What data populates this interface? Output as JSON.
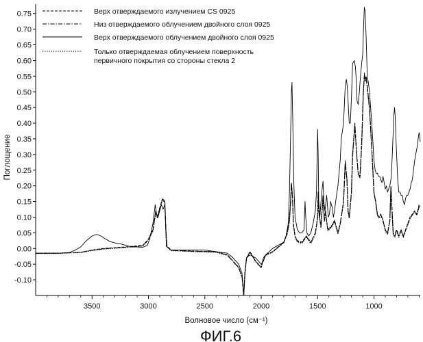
{
  "chart_data": {
    "type": "line",
    "caption": "ФИГ.6",
    "xlabel": "Волновое число (см⁻¹)",
    "ylabel": "Поглощение",
    "xlim": [
      4000,
      590
    ],
    "ylim": [
      -0.15,
      0.78
    ],
    "x_ticks": [
      {
        "value": 3500,
        "label": "3500"
      },
      {
        "value": 3000,
        "label": "3000"
      },
      {
        "value": 2500,
        "label": "2500"
      },
      {
        "value": 2000,
        "label": "2000"
      },
      {
        "value": 1500,
        "label": "1500"
      },
      {
        "value": 1000,
        "label": "1000"
      }
    ],
    "y_ticks": [
      {
        "value": 0.75,
        "label": "0.75"
      },
      {
        "value": 0.7,
        "label": "0.70"
      },
      {
        "value": 0.65,
        "label": "0.65"
      },
      {
        "value": 0.6,
        "label": "0.60"
      },
      {
        "value": 0.55,
        "label": "0.55"
      },
      {
        "value": 0.5,
        "label": "0.50"
      },
      {
        "value": 0.45,
        "label": "0.45"
      },
      {
        "value": 0.4,
        "label": "0.40"
      },
      {
        "value": 0.35,
        "label": "0.35"
      },
      {
        "value": 0.3,
        "label": "0.30"
      },
      {
        "value": 0.25,
        "label": "0.25"
      },
      {
        "value": 0.2,
        "label": "0.20"
      },
      {
        "value": 0.15,
        "label": "0.15"
      },
      {
        "value": 0.1,
        "label": "0.10"
      },
      {
        "value": 0.05,
        "label": "0.05"
      },
      {
        "value": 0.0,
        "label": "0.00"
      },
      {
        "value": -0.05,
        "label": "-0.05"
      },
      {
        "value": -0.1,
        "label": "-0.10"
      }
    ],
    "legend": {
      "placement": "top-left",
      "entries": [
        {
          "series": "s1",
          "lines": [
            "Верх отверждаемого излучением CS 0925"
          ]
        },
        {
          "series": "s2",
          "lines": [
            "Низ отверждаемого облучением двойного слоя 0925"
          ]
        },
        {
          "series": "s3",
          "lines": [
            "Верх отверждаемого облучением двойного слоя 0925"
          ]
        },
        {
          "series": "s4",
          "lines": [
            "Только отверждаемая облучением поверхность",
            "первичного покрытия со стороны стекла 2"
          ]
        }
      ]
    },
    "series": [
      {
        "id": "s1",
        "name": "Верх отверждаемого излучением CS 0925",
        "style": "dashed",
        "x": [
          4000,
          3800,
          3600,
          3500,
          3400,
          3200,
          3050,
          3000,
          2960,
          2935,
          2920,
          2900,
          2875,
          2855,
          2840,
          2800,
          2600,
          2400,
          2300,
          2250,
          2200,
          2170,
          2155,
          2145,
          2130,
          2100,
          2050,
          2000,
          1980,
          1960,
          1900,
          1850,
          1800,
          1770,
          1750,
          1740,
          1732,
          1722,
          1715,
          1700,
          1680,
          1640,
          1600,
          1560,
          1520,
          1500,
          1495,
          1490,
          1470,
          1452,
          1440,
          1430,
          1410,
          1380,
          1350,
          1320,
          1300,
          1270,
          1255,
          1240,
          1230,
          1220,
          1200,
          1190,
          1170,
          1155,
          1140,
          1125,
          1110,
          1095,
          1085,
          1080,
          1070,
          1060,
          1040,
          1020,
          1000,
          985,
          970,
          955,
          940,
          920,
          900,
          880,
          860,
          850,
          840,
          830,
          820,
          815,
          810,
          800,
          790,
          780,
          760,
          740,
          720,
          700,
          680,
          660,
          640,
          620,
          600,
          590
        ],
        "y": [
          -0.015,
          -0.015,
          -0.012,
          -0.005,
          0.0,
          0.005,
          0.01,
          0.03,
          0.06,
          0.12,
          0.1,
          0.13,
          0.16,
          0.15,
          0.01,
          -0.005,
          -0.008,
          -0.01,
          -0.02,
          -0.04,
          -0.06,
          -0.09,
          -0.15,
          -0.08,
          -0.03,
          -0.01,
          -0.04,
          -0.06,
          -0.03,
          -0.02,
          -0.01,
          0.005,
          0.02,
          0.05,
          0.09,
          0.15,
          0.21,
          0.16,
          0.08,
          0.04,
          0.025,
          0.02,
          0.04,
          0.02,
          0.05,
          0.1,
          0.18,
          0.12,
          0.07,
          0.17,
          0.09,
          0.12,
          0.06,
          0.07,
          0.09,
          0.05,
          0.08,
          0.15,
          0.28,
          0.22,
          0.12,
          0.1,
          0.18,
          0.3,
          0.4,
          0.31,
          0.24,
          0.23,
          0.33,
          0.5,
          0.56,
          0.54,
          0.55,
          0.52,
          0.45,
          0.32,
          0.18,
          0.15,
          0.11,
          0.1,
          0.11,
          0.09,
          0.06,
          0.05,
          0.09,
          0.2,
          0.12,
          0.05,
          0.04,
          0.04,
          0.05,
          0.06,
          0.05,
          0.04,
          0.06,
          0.04,
          0.06,
          0.08,
          0.1,
          0.11,
          0.12,
          0.11,
          0.14,
          0.14
        ]
      },
      {
        "id": "s2",
        "name": "Низ отверждаемого облучением двойного слоя 0925",
        "style": "dash-dot",
        "x": [
          4000,
          3800,
          3600,
          3500,
          3400,
          3200,
          3050,
          3000,
          2960,
          2935,
          2920,
          2900,
          2875,
          2855,
          2840,
          2800,
          2600,
          2400,
          2300,
          2250,
          2200,
          2170,
          2155,
          2145,
          2130,
          2100,
          2050,
          2000,
          1980,
          1960,
          1900,
          1850,
          1800,
          1770,
          1750,
          1740,
          1732,
          1722,
          1715,
          1700,
          1680,
          1640,
          1600,
          1560,
          1520,
          1500,
          1495,
          1490,
          1470,
          1452,
          1440,
          1430,
          1410,
          1380,
          1350,
          1320,
          1300,
          1270,
          1255,
          1240,
          1230,
          1220,
          1200,
          1190,
          1170,
          1155,
          1140,
          1125,
          1110,
          1095,
          1085,
          1080,
          1070,
          1060,
          1040,
          1020,
          1000,
          985,
          970,
          955,
          940,
          920,
          900,
          880,
          860,
          850,
          840,
          830,
          820,
          815,
          810,
          800,
          790,
          780,
          760,
          740,
          720,
          700,
          680,
          660,
          640,
          620,
          600,
          590
        ],
        "y": [
          -0.015,
          -0.015,
          -0.012,
          -0.006,
          -0.001,
          0.004,
          0.009,
          0.028,
          0.058,
          0.118,
          0.098,
          0.128,
          0.158,
          0.148,
          0.008,
          -0.006,
          -0.009,
          -0.011,
          -0.021,
          -0.041,
          -0.061,
          -0.091,
          -0.15,
          -0.08,
          -0.031,
          -0.011,
          -0.041,
          -0.061,
          -0.031,
          -0.021,
          -0.011,
          0.004,
          0.019,
          0.048,
          0.088,
          0.148,
          0.208,
          0.158,
          0.078,
          0.038,
          0.023,
          0.018,
          0.038,
          0.018,
          0.048,
          0.098,
          0.178,
          0.118,
          0.068,
          0.168,
          0.088,
          0.118,
          0.058,
          0.068,
          0.088,
          0.048,
          0.078,
          0.148,
          0.275,
          0.218,
          0.118,
          0.098,
          0.178,
          0.298,
          0.395,
          0.308,
          0.238,
          0.228,
          0.328,
          0.495,
          0.555,
          0.535,
          0.545,
          0.515,
          0.445,
          0.318,
          0.178,
          0.148,
          0.108,
          0.098,
          0.108,
          0.088,
          0.058,
          0.048,
          0.088,
          0.195,
          0.118,
          0.048,
          0.038,
          0.038,
          0.048,
          0.058,
          0.048,
          0.038,
          0.058,
          0.038,
          0.058,
          0.078,
          0.098,
          0.108,
          0.118,
          0.108,
          0.135,
          0.138
        ]
      },
      {
        "id": "s3",
        "name": "Верх отверждаемого облучением двойного слоя 0925",
        "style": "solid",
        "x": [
          4000,
          3800,
          3700,
          3650,
          3600,
          3550,
          3500,
          3460,
          3420,
          3380,
          3340,
          3300,
          3250,
          3200,
          3150,
          3100,
          3050,
          3010,
          2990,
          2960,
          2940,
          2928,
          2915,
          2900,
          2885,
          2870,
          2855,
          2845,
          2835,
          2800,
          2700,
          2600,
          2500,
          2400,
          2300,
          2250,
          2200,
          2170,
          2155,
          2145,
          2130,
          2100,
          2050,
          2000,
          1980,
          1960,
          1900,
          1850,
          1800,
          1780,
          1760,
          1750,
          1740,
          1733,
          1727,
          1720,
          1710,
          1700,
          1680,
          1660,
          1640,
          1620,
          1612,
          1605,
          1595,
          1580,
          1560,
          1540,
          1520,
          1510,
          1500,
          1495,
          1490,
          1480,
          1470,
          1460,
          1452,
          1445,
          1435,
          1420,
          1405,
          1395,
          1385,
          1370,
          1360,
          1350,
          1340,
          1320,
          1300,
          1290,
          1270,
          1255,
          1245,
          1238,
          1230,
          1220,
          1210,
          1200,
          1190,
          1175,
          1165,
          1158,
          1150,
          1140,
          1130,
          1120,
          1110,
          1100,
          1093,
          1086,
          1080,
          1070,
          1060,
          1050,
          1040,
          1030,
          1020,
          1010,
          1000,
          990,
          980,
          970,
          960,
          950,
          940,
          930,
          920,
          910,
          900,
          890,
          880,
          870,
          860,
          850,
          845,
          838,
          830,
          825,
          818,
          812,
          805,
          800,
          790,
          780,
          770,
          760,
          750,
          740,
          730,
          720,
          710,
          700,
          690,
          680,
          670,
          660,
          650,
          640,
          630,
          620,
          612,
          605,
          600,
          595,
          590
        ],
        "y": [
          -0.015,
          -0.015,
          -0.013,
          -0.005,
          0.005,
          0.025,
          0.04,
          0.045,
          0.04,
          0.03,
          0.022,
          0.018,
          0.015,
          0.01,
          0.005,
          0.005,
          0.004,
          0.01,
          0.03,
          0.08,
          0.14,
          0.11,
          0.1,
          0.12,
          0.14,
          0.125,
          0.14,
          0.06,
          0.005,
          -0.005,
          -0.005,
          -0.005,
          -0.005,
          -0.01,
          -0.015,
          -0.03,
          -0.05,
          -0.08,
          -0.15,
          -0.08,
          -0.03,
          -0.02,
          -0.03,
          -0.05,
          -0.04,
          -0.02,
          0.0,
          0.01,
          0.02,
          0.04,
          0.08,
          0.18,
          0.35,
          0.5,
          0.53,
          0.4,
          0.2,
          0.1,
          0.06,
          0.05,
          0.05,
          0.06,
          0.15,
          0.1,
          0.05,
          0.04,
          0.05,
          0.08,
          0.12,
          0.18,
          0.38,
          0.3,
          0.15,
          0.1,
          0.15,
          0.19,
          0.215,
          0.15,
          0.12,
          0.17,
          0.1,
          0.11,
          0.15,
          0.13,
          0.1,
          0.12,
          0.15,
          0.2,
          0.28,
          0.35,
          0.4,
          0.52,
          0.54,
          0.52,
          0.47,
          0.4,
          0.4,
          0.48,
          0.59,
          0.6,
          0.58,
          0.54,
          0.47,
          0.46,
          0.5,
          0.55,
          0.59,
          0.62,
          0.7,
          0.77,
          0.76,
          0.68,
          0.55,
          0.53,
          0.5,
          0.45,
          0.4,
          0.34,
          0.28,
          0.25,
          0.24,
          0.24,
          0.23,
          0.23,
          0.22,
          0.21,
          0.23,
          0.21,
          0.19,
          0.2,
          0.18,
          0.19,
          0.2,
          0.22,
          0.24,
          0.3,
          0.37,
          0.42,
          0.45,
          0.42,
          0.35,
          0.3,
          0.22,
          0.18,
          0.18,
          0.17,
          0.17,
          0.15,
          0.14,
          0.16,
          0.17,
          0.17,
          0.18,
          0.19,
          0.21,
          0.22,
          0.25,
          0.28,
          0.3,
          0.32,
          0.34,
          0.36,
          0.37,
          0.36,
          0.34
        ]
      },
      {
        "id": "s4",
        "name": "Только отверждаемая облучением поверхность первичного покрытия со стороны стекла 2",
        "style": "dotted",
        "x": [
          4000,
          3800,
          3600,
          3500,
          3400,
          3200,
          3050,
          3000,
          2960,
          2935,
          2920,
          2900,
          2875,
          2855,
          2840,
          2800,
          2600,
          2400,
          2300,
          2250,
          2200,
          2170,
          2155,
          2145,
          2130,
          2100,
          2050,
          2000,
          1980,
          1960,
          1900,
          1850,
          1800,
          1770,
          1750,
          1740,
          1732,
          1722,
          1715,
          1700,
          1680,
          1640,
          1600,
          1560,
          1520,
          1500,
          1495,
          1490,
          1470,
          1452,
          1440,
          1430,
          1410,
          1380,
          1350,
          1320,
          1300,
          1270,
          1255,
          1240,
          1230,
          1220,
          1200,
          1190,
          1170,
          1155,
          1140,
          1125,
          1110,
          1095,
          1085,
          1080,
          1070,
          1060,
          1040,
          1020,
          1000,
          985,
          970,
          955,
          940,
          920,
          900,
          880,
          860,
          850,
          840,
          830,
          820,
          815,
          810,
          800,
          790,
          780,
          760,
          740,
          720,
          700,
          680,
          660,
          640,
          620,
          600,
          590
        ],
        "y": [
          -0.016,
          -0.016,
          -0.013,
          -0.007,
          -0.002,
          0.003,
          0.008,
          0.027,
          0.056,
          0.115,
          0.096,
          0.126,
          0.155,
          0.146,
          0.007,
          -0.007,
          -0.01,
          -0.012,
          -0.022,
          -0.042,
          -0.062,
          -0.092,
          -0.15,
          -0.081,
          -0.032,
          -0.012,
          -0.042,
          -0.062,
          -0.032,
          -0.022,
          -0.012,
          0.003,
          0.018,
          0.046,
          0.086,
          0.146,
          0.205,
          0.156,
          0.076,
          0.036,
          0.021,
          0.016,
          0.036,
          0.016,
          0.046,
          0.096,
          0.175,
          0.116,
          0.066,
          0.165,
          0.086,
          0.116,
          0.056,
          0.066,
          0.086,
          0.046,
          0.076,
          0.146,
          0.272,
          0.216,
          0.116,
          0.096,
          0.176,
          0.296,
          0.392,
          0.306,
          0.236,
          0.226,
          0.326,
          0.492,
          0.552,
          0.532,
          0.542,
          0.512,
          0.442,
          0.316,
          0.176,
          0.146,
          0.106,
          0.096,
          0.106,
          0.086,
          0.056,
          0.046,
          0.086,
          0.192,
          0.116,
          0.046,
          0.036,
          0.036,
          0.046,
          0.056,
          0.046,
          0.036,
          0.056,
          0.036,
          0.056,
          0.076,
          0.096,
          0.106,
          0.116,
          0.106,
          0.132,
          0.136
        ]
      }
    ]
  }
}
